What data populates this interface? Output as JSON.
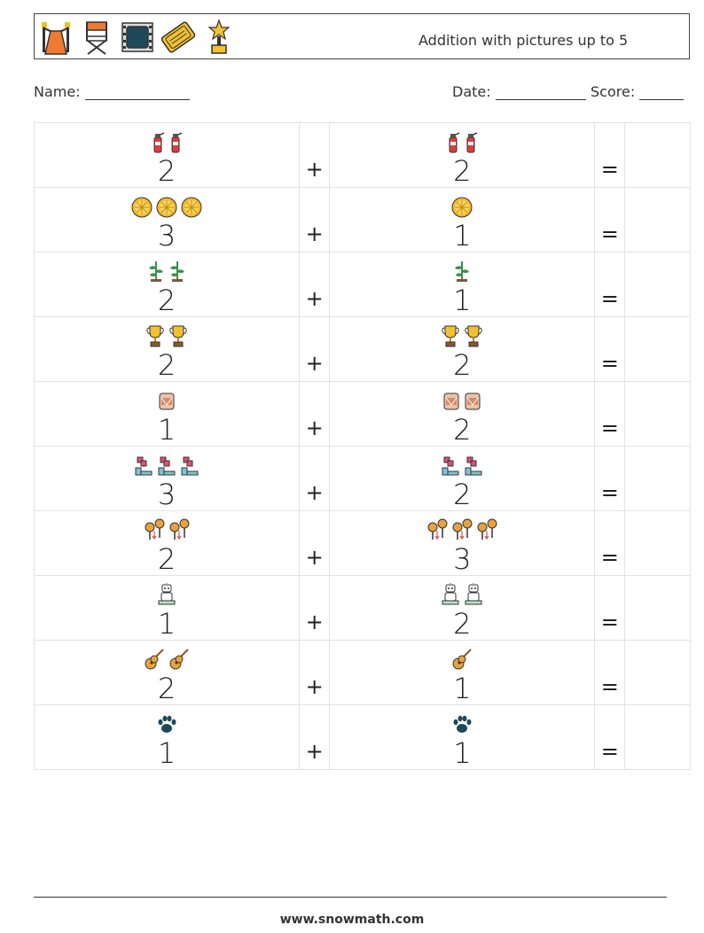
{
  "header": {
    "title": "Addition with pictures up to 5",
    "icons": [
      "red-carpet-icon",
      "director-chair-icon",
      "film-frame-icon",
      "cinema-ticket-icon",
      "award-trophy-icon"
    ]
  },
  "info": {
    "name_label": "Name:",
    "date_label": "Date:",
    "score_label": "Score:"
  },
  "plus": "+",
  "equals": "=",
  "rows": [
    {
      "a": "2",
      "b": "2",
      "icon": "fire-extinguisher-icon",
      "na": 2,
      "nb": 2
    },
    {
      "a": "3",
      "b": "1",
      "icon": "orange-slice-icon",
      "na": 3,
      "nb": 1
    },
    {
      "a": "2",
      "b": "1",
      "icon": "plant-sprout-icon",
      "na": 2,
      "nb": 1
    },
    {
      "a": "2",
      "b": "2",
      "icon": "trophy-icon",
      "na": 2,
      "nb": 2
    },
    {
      "a": "1",
      "b": "2",
      "icon": "drum-icon",
      "na": 1,
      "nb": 2
    },
    {
      "a": "3",
      "b": "2",
      "icon": "tetris-block-icon",
      "na": 3,
      "nb": 2
    },
    {
      "a": "2",
      "b": "3",
      "icon": "maracas-icon",
      "na": 2,
      "nb": 3
    },
    {
      "a": "1",
      "b": "2",
      "icon": "robot-icon",
      "na": 1,
      "nb": 2
    },
    {
      "a": "2",
      "b": "1",
      "icon": "guitar-icon",
      "na": 2,
      "nb": 1
    },
    {
      "a": "1",
      "b": "1",
      "icon": "paw-print-icon",
      "na": 1,
      "nb": 1
    }
  ],
  "colors": {
    "fire-extinguisher-icon": "#e23b3b",
    "orange-slice-icon": "#f5b82e",
    "plant-sprout-icon": "#3a8f4a",
    "trophy-icon": "#f2c12e",
    "drum-icon": "#d98a6a",
    "tetris-block-icon": "#e04f7a",
    "maracas-icon": "#e8a23a",
    "robot-icon": "#9aa0a6",
    "guitar-icon": "#e9a23b",
    "paw-print-icon": "#1d4a5a"
  },
  "footer": "www.snowmath.com"
}
